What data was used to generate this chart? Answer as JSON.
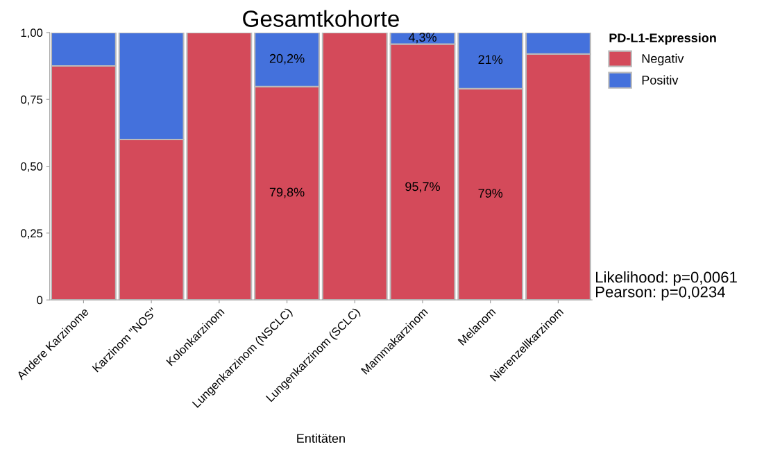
{
  "chart_data": {
    "type": "bar",
    "stacked": true,
    "title": "Gesamtkohorte",
    "xlabel": "Entitäten",
    "legend_title": "PD-L1-Expression",
    "legend": "top right",
    "grid": false,
    "categories": [
      "Andere Karzinome",
      "Karzinom \"NOS\"",
      "Kolonkarzinom",
      "Lungenkarzinom (NSCLC)",
      "Lungenkarzinom (SCLC)",
      "Mammakarzinom",
      "Melanom",
      "Nierenzellkarzinom"
    ],
    "series": [
      {
        "name": "Negativ",
        "color": "#d44a5a",
        "values": [
          0.875,
          0.6,
          1.0,
          0.798,
          1.0,
          0.957,
          0.79,
          0.92
        ],
        "value_labels": [
          null,
          null,
          null,
          "79,8%",
          null,
          "95,7%",
          "79%",
          null
        ]
      },
      {
        "name": "Positiv",
        "color": "#4471dc",
        "values": [
          0.125,
          0.4,
          0.0,
          0.202,
          0.0,
          0.043,
          0.21,
          0.08
        ],
        "value_labels": [
          null,
          null,
          null,
          "20,2%",
          null,
          "4,3%",
          "21%",
          null
        ]
      }
    ],
    "ylim": [
      0,
      1
    ],
    "yticks": [
      0,
      {
        "value": 0.25,
        "label": "0,25"
      },
      {
        "value": 0.5,
        "label": "0,50"
      },
      {
        "value": 0.75,
        "label": "0,75"
      },
      {
        "value": 1,
        "label": "1,00"
      }
    ],
    "annotations": [
      "Likelihood: p=0,0061",
      "Pearson: p=0,0234"
    ]
  }
}
